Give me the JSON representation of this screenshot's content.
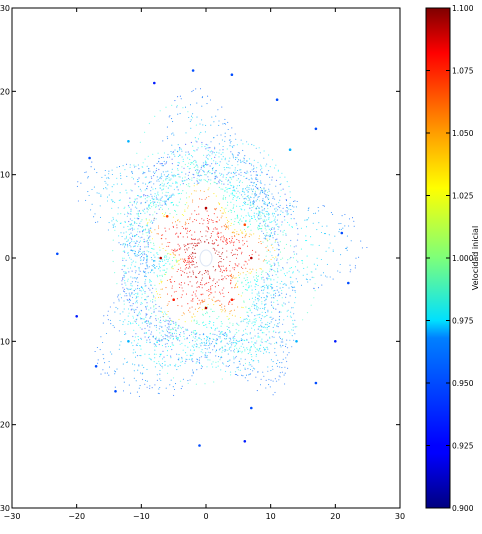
{
  "chart_data": {
    "type": "scatter",
    "title": "",
    "xlabel": "",
    "ylabel": "",
    "xlim": [
      -30,
      30
    ],
    "ylim": [
      -30,
      30
    ],
    "x_ticks": [
      "−30",
      "−20",
      "−10",
      "0",
      "10",
      "20",
      "30"
    ],
    "y_ticks": [
      "30",
      "20",
      "10",
      "0",
      "−10",
      "−20",
      "−30"
    ],
    "x_tick_values": [
      -30,
      -20,
      -10,
      0,
      10,
      20,
      30
    ],
    "y_tick_values": [
      30,
      20,
      10,
      0,
      -10,
      -20,
      -30
    ],
    "grid": false,
    "series": [
      {
        "description": "dotted orbit trajectories around origin, colored by initial velocity",
        "points": [
          {
            "x": -20.0,
            "y": -7.0,
            "v": 0.93
          },
          {
            "x": -23.0,
            "y": 0.5,
            "v": 0.94
          },
          {
            "x": -18.0,
            "y": 12.0,
            "v": 0.94
          },
          {
            "x": -8.0,
            "y": 21.0,
            "v": 0.93
          },
          {
            "x": -2.0,
            "y": 22.5,
            "v": 0.94
          },
          {
            "x": 4.0,
            "y": 22.0,
            "v": 0.94
          },
          {
            "x": 11.0,
            "y": 19.0,
            "v": 0.94
          },
          {
            "x": 17.0,
            "y": 15.5,
            "v": 0.94
          },
          {
            "x": 21.0,
            "y": 3.0,
            "v": 0.94
          },
          {
            "x": 22.0,
            "y": -3.0,
            "v": 0.94
          },
          {
            "x": 20.0,
            "y": -10.0,
            "v": 0.93
          },
          {
            "x": 17.0,
            "y": -15.0,
            "v": 0.94
          },
          {
            "x": 7.0,
            "y": -18.0,
            "v": 0.94
          },
          {
            "x": 6.0,
            "y": -22.0,
            "v": 0.93
          },
          {
            "x": -1.0,
            "y": -22.5,
            "v": 0.94
          },
          {
            "x": -14.0,
            "y": -16.0,
            "v": 0.94
          },
          {
            "x": -17.0,
            "y": -13.0,
            "v": 0.94
          },
          {
            "x": -12.0,
            "y": 14.0,
            "v": 0.96
          },
          {
            "x": 13.0,
            "y": 13.0,
            "v": 0.96
          },
          {
            "x": 14.0,
            "y": -10.0,
            "v": 0.96
          },
          {
            "x": -12.0,
            "y": -10.0,
            "v": 0.96
          },
          {
            "x": 6.0,
            "y": 4.0,
            "v": 1.06
          },
          {
            "x": -6.0,
            "y": 5.0,
            "v": 1.06
          },
          {
            "x": -5.0,
            "y": -5.0,
            "v": 1.07
          },
          {
            "x": 4.0,
            "y": -5.0,
            "v": 1.07
          },
          {
            "x": 0.0,
            "y": 6.0,
            "v": 1.09
          },
          {
            "x": 0.0,
            "y": -6.0,
            "v": 1.09
          },
          {
            "x": 7.0,
            "y": 0.0,
            "v": 1.09
          },
          {
            "x": -7.0,
            "y": 0.0,
            "v": 1.09
          }
        ]
      }
    ],
    "colorbar": {
      "label": "Velocidad inicial",
      "range": [
        0.9,
        1.1
      ],
      "colormap": "jet",
      "ticks": [
        "1.100",
        "1.075",
        "1.050",
        "1.025",
        "1.000",
        "0.975",
        "0.950",
        "0.925",
        "0.900"
      ],
      "tick_values": [
        1.1,
        1.075,
        1.05,
        1.025,
        1.0,
        0.975,
        0.95,
        0.925,
        0.9
      ]
    }
  }
}
